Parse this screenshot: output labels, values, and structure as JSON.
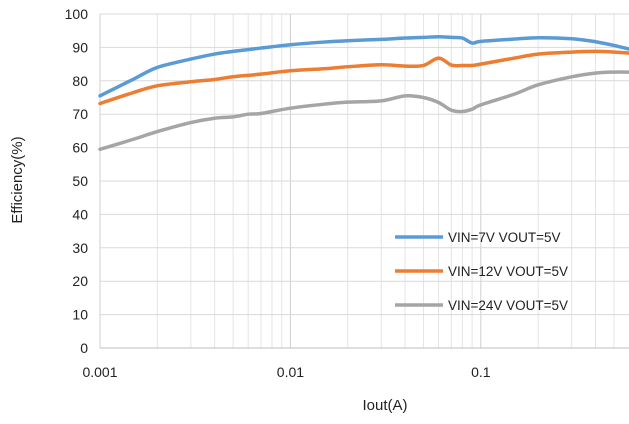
{
  "chart_data": {
    "type": "line",
    "title": "",
    "xlabel": "Iout(A)",
    "ylabel": "Efficiency(%)",
    "x_scale": "log",
    "xlim": [
      0.001,
      0.6
    ],
    "ylim": [
      0,
      100
    ],
    "x_ticks": [
      0.001,
      0.01,
      0.1
    ],
    "x_tick_labels": [
      "0.001",
      "0.01",
      "0.1"
    ],
    "y_ticks": [
      0,
      10,
      20,
      30,
      40,
      50,
      60,
      70,
      80,
      90,
      100
    ],
    "y_tick_labels": [
      "0",
      "10",
      "20",
      "30",
      "40",
      "50",
      "60",
      "70",
      "80",
      "90",
      "100"
    ],
    "grid": true,
    "legend_position": "bottom-right",
    "series": [
      {
        "name": "VIN=7V VOUT=5V",
        "color": "#5B9BD5",
        "points": [
          [
            0.001,
            75.5
          ],
          [
            0.0015,
            80.5
          ],
          [
            0.002,
            84.0
          ],
          [
            0.003,
            86.5
          ],
          [
            0.004,
            88.0
          ],
          [
            0.005,
            88.8
          ],
          [
            0.007,
            89.8
          ],
          [
            0.01,
            90.8
          ],
          [
            0.015,
            91.6
          ],
          [
            0.02,
            92.0
          ],
          [
            0.03,
            92.4
          ],
          [
            0.04,
            92.8
          ],
          [
            0.05,
            93.0
          ],
          [
            0.06,
            93.2
          ],
          [
            0.07,
            93.0
          ],
          [
            0.08,
            92.8
          ],
          [
            0.09,
            91.3
          ],
          [
            0.1,
            91.8
          ],
          [
            0.15,
            92.5
          ],
          [
            0.2,
            92.9
          ],
          [
            0.3,
            92.6
          ],
          [
            0.4,
            91.7
          ],
          [
            0.5,
            90.6
          ],
          [
            0.6,
            89.5
          ]
        ]
      },
      {
        "name": "VIN=12V VOUT=5V",
        "color": "#ED7D31",
        "points": [
          [
            0.001,
            73.2
          ],
          [
            0.0015,
            76.5
          ],
          [
            0.002,
            78.5
          ],
          [
            0.003,
            79.7
          ],
          [
            0.004,
            80.4
          ],
          [
            0.005,
            81.2
          ],
          [
            0.007,
            82.0
          ],
          [
            0.01,
            83.0
          ],
          [
            0.015,
            83.6
          ],
          [
            0.02,
            84.2
          ],
          [
            0.03,
            84.8
          ],
          [
            0.04,
            84.4
          ],
          [
            0.05,
            84.6
          ],
          [
            0.06,
            86.8
          ],
          [
            0.07,
            84.7
          ],
          [
            0.08,
            84.6
          ],
          [
            0.09,
            84.6
          ],
          [
            0.1,
            85.0
          ],
          [
            0.15,
            86.8
          ],
          [
            0.2,
            88.0
          ],
          [
            0.3,
            88.6
          ],
          [
            0.4,
            88.8
          ],
          [
            0.5,
            88.6
          ],
          [
            0.6,
            88.3
          ]
        ]
      },
      {
        "name": "VIN=24V VOUT=5V",
        "color": "#A5A5A5",
        "points": [
          [
            0.001,
            59.5
          ],
          [
            0.0015,
            62.5
          ],
          [
            0.002,
            64.8
          ],
          [
            0.003,
            67.5
          ],
          [
            0.004,
            68.8
          ],
          [
            0.005,
            69.2
          ],
          [
            0.006,
            70.0
          ],
          [
            0.007,
            70.2
          ],
          [
            0.01,
            71.8
          ],
          [
            0.015,
            73.0
          ],
          [
            0.02,
            73.6
          ],
          [
            0.03,
            74.0
          ],
          [
            0.04,
            75.5
          ],
          [
            0.05,
            75.0
          ],
          [
            0.06,
            73.5
          ],
          [
            0.07,
            71.2
          ],
          [
            0.08,
            70.8
          ],
          [
            0.09,
            71.5
          ],
          [
            0.1,
            72.8
          ],
          [
            0.15,
            76.0
          ],
          [
            0.2,
            78.8
          ],
          [
            0.3,
            81.2
          ],
          [
            0.4,
            82.3
          ],
          [
            0.5,
            82.6
          ],
          [
            0.6,
            82.6
          ]
        ]
      }
    ]
  }
}
